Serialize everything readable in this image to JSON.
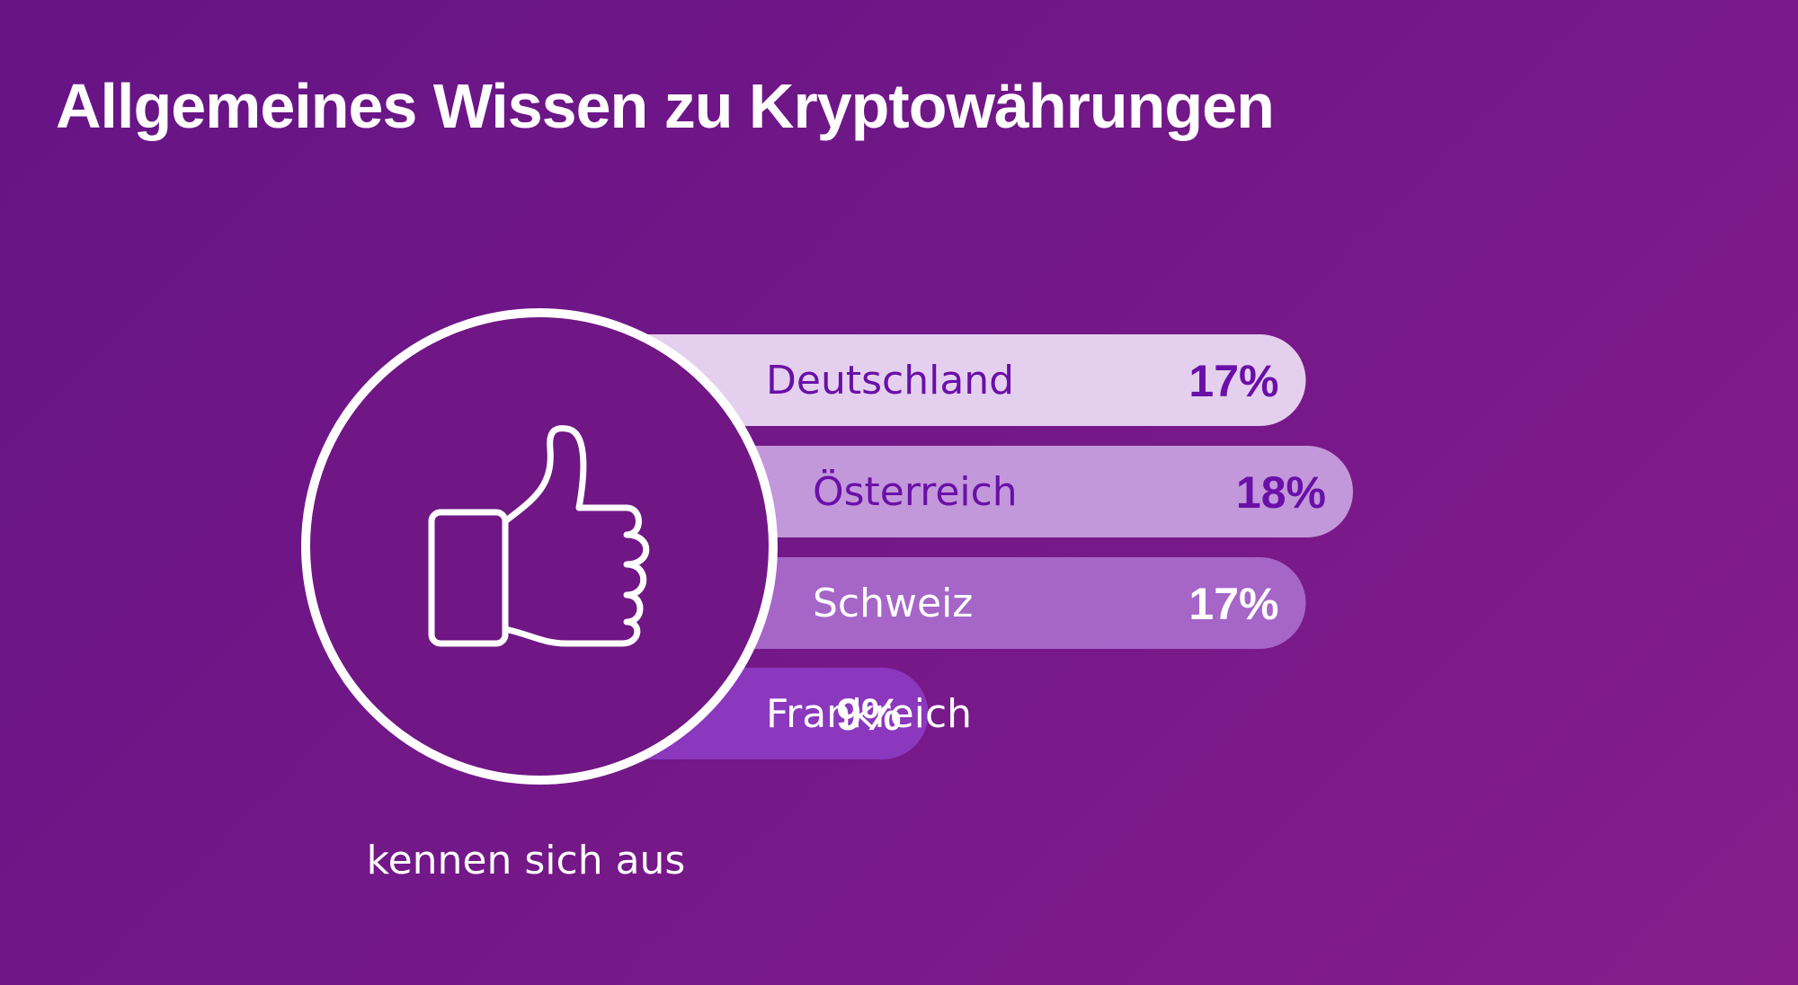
{
  "title": "Allgemeines Wissen zu Kryptowährungen",
  "caption": "kennen sich aus",
  "icon": "thumbs-up-icon",
  "chart_data": {
    "type": "bar",
    "orientation": "horizontal",
    "unit": "%",
    "categories": [
      "Deutschland",
      "Österreich",
      "Schweiz",
      "Frankreich"
    ],
    "values": [
      17,
      18,
      17,
      9
    ],
    "value_labels": [
      "17%",
      "18%",
      "17%",
      "9%"
    ],
    "bar_colors": [
      "#e4d0ee",
      "#c398da",
      "#a566c8",
      "#8b38be"
    ],
    "label_colors": [
      "#6a0fa8",
      "#6a0fa8",
      "#ffffff",
      "#ffffff"
    ],
    "title": "Allgemeines Wissen zu Kryptowährungen"
  },
  "colors": {
    "background_start": "#661486",
    "background_end": "#861c8c",
    "circle_fill": "#701685",
    "stroke": "#ffffff",
    "title": "#ffffff"
  }
}
